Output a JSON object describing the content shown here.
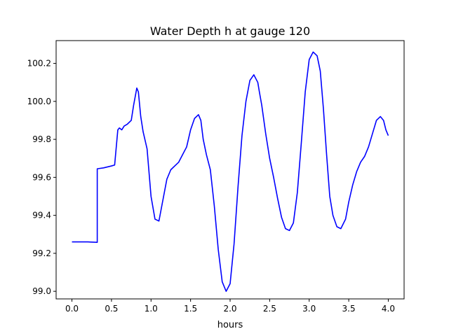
{
  "chart_data": {
    "type": "line",
    "title": "Water Depth h at gauge 120",
    "xlabel": "hours",
    "ylabel": "",
    "xlim": [
      -0.2,
      4.2
    ],
    "ylim": [
      98.96,
      100.32
    ],
    "xticks": [
      0.0,
      0.5,
      1.0,
      1.5,
      2.0,
      2.5,
      3.0,
      3.5,
      4.0
    ],
    "xtick_labels": [
      "0.0",
      "0.5",
      "1.0",
      "1.5",
      "2.0",
      "2.5",
      "3.0",
      "3.5",
      "4.0"
    ],
    "yticks": [
      99.0,
      99.2,
      99.4,
      99.6,
      99.8,
      100.0,
      100.2
    ],
    "ytick_labels": [
      "99.0",
      "99.2",
      "99.4",
      "99.6",
      "99.8",
      "100.0",
      "100.2"
    ],
    "grid": false,
    "line_color": "#0000ff",
    "series": [
      {
        "name": "",
        "x": [
          0.0,
          0.2,
          0.32,
          0.32,
          0.4,
          0.5,
          0.54,
          0.58,
          0.6,
          0.63,
          0.66,
          0.7,
          0.75,
          0.78,
          0.82,
          0.84,
          0.87,
          0.9,
          0.95,
          1.0,
          1.05,
          1.1,
          1.15,
          1.2,
          1.25,
          1.3,
          1.35,
          1.4,
          1.45,
          1.5,
          1.55,
          1.6,
          1.63,
          1.66,
          1.7,
          1.75,
          1.8,
          1.85,
          1.9,
          1.95,
          2.0,
          2.05,
          2.1,
          2.15,
          2.2,
          2.25,
          2.3,
          2.35,
          2.37,
          2.4,
          2.45,
          2.5,
          2.55,
          2.6,
          2.65,
          2.7,
          2.75,
          2.8,
          2.85,
          2.9,
          2.95,
          3.0,
          3.05,
          3.1,
          3.14,
          3.18,
          3.22,
          3.26,
          3.3,
          3.35,
          3.4,
          3.46,
          3.5,
          3.55,
          3.6,
          3.65,
          3.7,
          3.75,
          3.8,
          3.85,
          3.9,
          3.94,
          3.97,
          4.0
        ],
        "y": [
          99.26,
          99.26,
          99.258,
          99.645,
          99.65,
          99.66,
          99.665,
          99.85,
          99.86,
          99.85,
          99.87,
          99.88,
          99.9,
          99.98,
          100.07,
          100.05,
          99.92,
          99.84,
          99.75,
          99.5,
          99.38,
          99.37,
          99.48,
          99.59,
          99.64,
          99.66,
          99.68,
          99.72,
          99.76,
          99.85,
          99.91,
          99.93,
          99.9,
          99.8,
          99.72,
          99.64,
          99.45,
          99.22,
          99.05,
          99.0,
          99.04,
          99.25,
          99.55,
          99.82,
          100.0,
          100.11,
          100.14,
          100.1,
          100.05,
          99.98,
          99.83,
          99.7,
          99.6,
          99.49,
          99.39,
          99.33,
          99.32,
          99.36,
          99.52,
          99.78,
          100.05,
          100.22,
          100.26,
          100.24,
          100.16,
          99.96,
          99.72,
          99.5,
          99.4,
          99.34,
          99.33,
          99.38,
          99.47,
          99.56,
          99.63,
          99.68,
          99.71,
          99.76,
          99.83,
          99.9,
          99.92,
          99.9,
          99.85,
          99.82
        ]
      }
    ]
  }
}
